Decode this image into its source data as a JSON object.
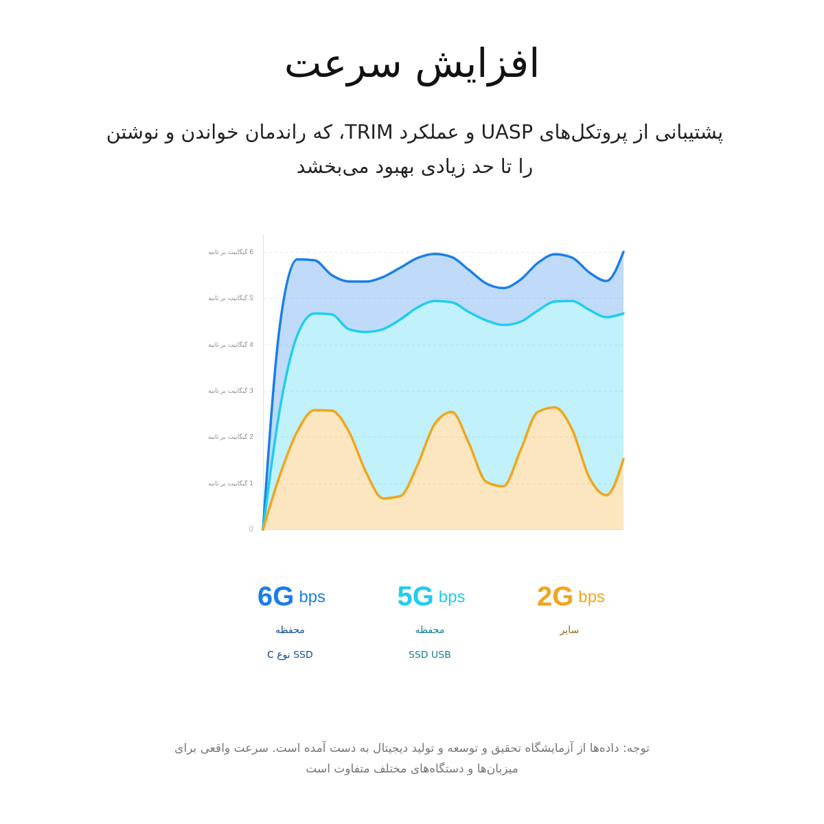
{
  "chart_data": {
    "type": "area",
    "title": "افزایش سرعت",
    "subtitle": "پشتیبانی از پروتکل‌های UASP و عملکرد TRIM، که راندمان خواندن و نوشتن را تا حد زیادی بهبود می‌بخشد",
    "categories": [
      null,
      null,
      null,
      null,
      null,
      null,
      null,
      null,
      null,
      null,
      null,
      null,
      null,
      null,
      null,
      null,
      null,
      null,
      null,
      null,
      null,
      null
    ],
    "series": [
      {
        "name": "6G bps",
        "color": "#1a7ee8",
        "values": [
          0,
          4.46,
          5.84,
          5.82,
          5.5,
          5.36,
          5.36,
          5.46,
          5.66,
          5.87,
          5.96,
          5.89,
          5.61,
          5.32,
          5.22,
          5.4,
          5.76,
          5.95,
          5.88,
          5.56,
          5.37,
          6.0
        ]
      },
      {
        "name": "5G bps",
        "color": "#1fcdef",
        "values": [
          0,
          2.64,
          4.2,
          4.67,
          4.65,
          4.33,
          4.27,
          4.33,
          4.54,
          4.8,
          4.94,
          4.91,
          4.7,
          4.52,
          4.42,
          4.49,
          4.73,
          4.93,
          4.94,
          4.75,
          4.59,
          4.67
        ]
      },
      {
        "name": "2G bps",
        "color": "#f0a61c",
        "values": [
          0,
          1.19,
          2.12,
          2.58,
          2.57,
          2.12,
          1.24,
          0.67,
          0.72,
          1.39,
          2.28,
          2.54,
          1.86,
          1.03,
          0.93,
          1.71,
          2.54,
          2.64,
          2.17,
          1.13,
          0.74,
          1.52
        ]
      }
    ],
    "ylim": [
      0,
      6.4
    ],
    "yticks": [
      0,
      {
        "value": 1,
        "label": "1 گیگابیت بر ثانیه"
      },
      {
        "value": 2,
        "label": "2 گیگابیت بر ثانیه"
      },
      {
        "value": 3,
        "label": "3 گیگابیت بر ثانیه"
      },
      {
        "value": 4,
        "label": "4 گیگابیت بر ثانیه"
      },
      {
        "value": 5,
        "label": "5 گیگابیت بر ثانیه"
      },
      {
        "value": 6,
        "label": "6 گیگابیت بر ثانیه"
      }
    ],
    "tick_labels": "y",
    "grid": "y",
    "legend": "bottom",
    "annotations": [
      "محفظه\nSSD نوع C",
      "محفظه\nSSD USB",
      "سایر",
      "توجه: داده‌ها از آزمایشگاه تحقیق و توسعه و تولید دیجیتال به دست آمده است. سرعت واقعی برای میزبان‌ها و دستگاه‌های مختلف متفاوت است"
    ]
  }
}
